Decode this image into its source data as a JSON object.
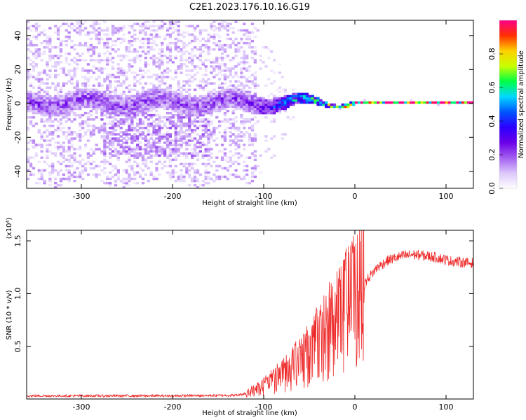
{
  "figure_title": "C2E1.2023.176.10.16.G19",
  "chart_data": [
    {
      "type": "heatmap",
      "title": "",
      "xlabel": "Height of straight line (km)",
      "ylabel": "Frequency (Hz)",
      "xlim": [
        -360,
        130
      ],
      "ylim": [
        -50,
        49
      ],
      "xticks": [
        -300,
        -200,
        -100,
        0,
        100
      ],
      "xtick_labels": [
        "-300",
        "-200",
        "-100",
        "0",
        "100"
      ],
      "yticks": [
        -40,
        -20,
        0,
        20,
        40
      ],
      "ytick_labels": [
        "-40",
        "-20",
        "0",
        "20",
        "40"
      ],
      "colorbar": {
        "label": "Normalized spectral amplitude",
        "range": [
          0,
          1
        ],
        "ticks": [
          0,
          0.2,
          0.4,
          0.6,
          0.8
        ],
        "tick_labels": [
          "0.0",
          "0.2",
          "0.4",
          "0.6",
          "0.8"
        ],
        "colormap": [
          "#ffffff",
          "#dcc6fb",
          "#a35ef0",
          "#6a00e8",
          "#2c00ff",
          "#0055ff",
          "#00d8ff",
          "#00ff44",
          "#c8ff00",
          "#ffd000",
          "#ff3000",
          "#ff0088"
        ]
      },
      "grid": false
    },
    {
      "type": "line",
      "title": "",
      "xlabel": "Height of straight line (km)",
      "ylabel": "SNR (10 * v/v)",
      "y_multiplier": "(x10⁴)",
      "xlim": [
        -360,
        130
      ],
      "ylim": [
        0,
        1.6
      ],
      "xticks": [
        -300,
        -200,
        -100,
        0,
        100
      ],
      "xtick_labels": [
        "-300",
        "-200",
        "-100",
        "0",
        "100"
      ],
      "yticks": [
        0.5,
        1.0,
        1.5
      ],
      "ytick_labels": [
        "0.5",
        "1.0",
        "1.5"
      ],
      "series": [
        {
          "color": "#ee2b2b",
          "x": [
            -360,
            -300,
            -200,
            -130,
            -115,
            -105,
            -95,
            -85,
            -75,
            -65,
            -55,
            -45,
            -35,
            -25,
            -15,
            -5,
            5,
            15,
            25,
            35,
            45,
            55,
            65,
            75,
            85,
            95,
            105,
            115,
            125,
            130
          ],
          "y": [
            0.03,
            0.03,
            0.03,
            0.035,
            0.06,
            0.09,
            0.13,
            0.18,
            0.23,
            0.29,
            0.36,
            0.45,
            0.54,
            0.63,
            0.74,
            0.88,
            1.02,
            1.15,
            1.25,
            1.31,
            1.34,
            1.36,
            1.37,
            1.36,
            1.35,
            1.33,
            1.31,
            1.3,
            1.29,
            1.29
          ]
        }
      ],
      "grid": false
    }
  ]
}
